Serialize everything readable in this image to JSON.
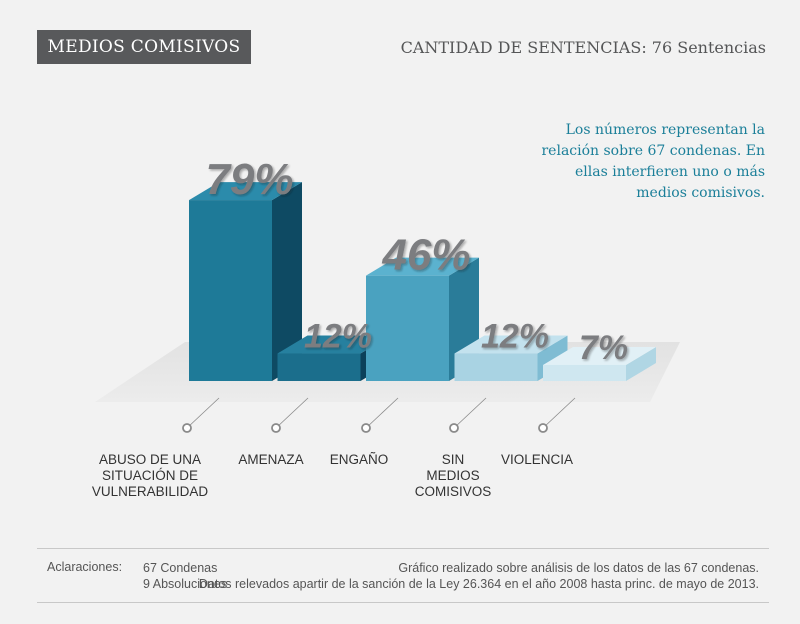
{
  "header": {
    "title": "MEDIOS COMISIVOS",
    "subtitle": "CANTIDAD DE SENTENCIAS: 76 Sentencias"
  },
  "note": "Los números representan la relación sobre 67 condenas. En ellas interfieren uno o más medios comisivos.",
  "chart_data": {
    "type": "bar",
    "title": "MEDIOS COMISIVOS",
    "categories": [
      [
        "ABUSO DE UNA",
        "SITUACIÓN DE",
        "VULNERABILIDAD"
      ],
      [
        "AMENAZA"
      ],
      [
        "ENGAÑO"
      ],
      [
        "SIN",
        "MEDIOS",
        "COMISIVOS"
      ],
      [
        "VIOLENCIA"
      ]
    ],
    "values": [
      79,
      12,
      46,
      12,
      7
    ],
    "labels": [
      "79%",
      "12%",
      "46%",
      "12%",
      "7%"
    ],
    "unit": "%",
    "ylim": [
      0,
      100
    ],
    "colors": [
      {
        "front": "#1e7a98",
        "side": "#0e4a63",
        "top": "#2b8bab"
      },
      {
        "front": "#1b6e8c",
        "side": "#0c415a",
        "top": "#26809f"
      },
      {
        "front": "#4aa2c0",
        "side": "#2a7c99",
        "top": "#5bb2cf"
      },
      {
        "front": "#a9d3e3",
        "side": "#7fbcd3",
        "top": "#c3e2ee"
      },
      {
        "front": "#cfe7f0",
        "side": "#b0d6e4",
        "top": "#e1f0f6"
      }
    ]
  },
  "footer": {
    "label": "Aclaraciones:",
    "condenas": "67 Condenas",
    "absoluciones": "9 Absoluciones",
    "note1": "Gráfico realizado sobre análisis de los datos de las 67 condenas.",
    "note2": "Datos relevados apartir de la sanción de la Ley 26.364 en el año 2008 hasta princ. de mayo de 2013."
  }
}
